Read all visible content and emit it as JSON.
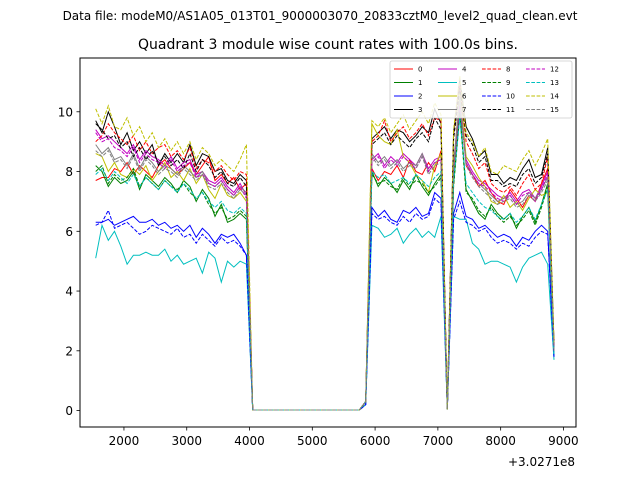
{
  "figure": {
    "suptitle": "Data file: modeM0/AS1A05_013T01_9000003070_20833cztM0_level2_quad_clean.evt"
  },
  "chart_data": {
    "type": "line",
    "title": "Quadrant 3 module wise count rates with 100.0s bins.",
    "xlabel": "",
    "ylabel": "",
    "x_offset_label": "+3.0271e8",
    "xlim": [
      1300,
      9200
    ],
    "ylim": [
      -0.55,
      11.8
    ],
    "xticks": [
      2000,
      3000,
      4000,
      5000,
      6000,
      7000,
      8000,
      9000
    ],
    "xtick_labels": [
      "2000",
      "3000",
      "4000",
      "5000",
      "6000",
      "7000",
      "8000",
      "9000"
    ],
    "yticks": [
      0,
      2,
      4,
      6,
      8,
      10
    ],
    "ytick_labels": [
      "0",
      "2",
      "4",
      "6",
      "8",
      "10"
    ],
    "grid": false,
    "legend_position": "top-right",
    "legend_columns": 4,
    "x": [
      1550,
      1650,
      1750,
      1850,
      1950,
      2050,
      2150,
      2250,
      2350,
      2450,
      2550,
      2650,
      2750,
      2850,
      2950,
      3050,
      3150,
      3250,
      3350,
      3450,
      3550,
      3650,
      3750,
      3850,
      3950,
      4050,
      5750,
      5850,
      5950,
      6050,
      6150,
      6250,
      6350,
      6450,
      6550,
      6650,
      6750,
      6850,
      6950,
      7050,
      7150,
      7250,
      7350,
      7450,
      7550,
      7650,
      7750,
      7850,
      7950,
      8050,
      8150,
      8250,
      8350,
      8450,
      8550,
      8650,
      8750,
      8850
    ],
    "series": [
      {
        "name": "0",
        "color": "#ff0000",
        "dash": "solid",
        "values": [
          7.7,
          7.8,
          7.8,
          8.1,
          8.0,
          8.3,
          7.9,
          8.2,
          8.0,
          7.8,
          8.2,
          8.4,
          8.1,
          7.9,
          8.1,
          8.3,
          7.9,
          8.2,
          8.5,
          7.7,
          7.9,
          7.6,
          7.8,
          7.4,
          7.6,
          0.02,
          0.02,
          0.3,
          8.1,
          7.7,
          8.0,
          7.9,
          8.2,
          7.8,
          8.4,
          8.0,
          7.9,
          8.3,
          8.0,
          8.7,
          0.05,
          8.0,
          10.8,
          8.2,
          7.9,
          7.5,
          7.7,
          7.3,
          7.0,
          6.9,
          7.4,
          7.1,
          6.8,
          7.2,
          7.0,
          7.6,
          8.1,
          2.1
        ]
      },
      {
        "name": "1",
        "color": "#008000",
        "dash": "solid",
        "values": [
          8.2,
          8.0,
          7.5,
          7.8,
          7.6,
          7.7,
          8.0,
          7.4,
          7.9,
          7.7,
          7.5,
          7.8,
          7.6,
          7.3,
          7.7,
          7.5,
          7.0,
          7.4,
          7.1,
          6.5,
          6.9,
          6.3,
          6.4,
          6.6,
          6.4,
          0.02,
          0.02,
          0.3,
          8.0,
          7.5,
          7.8,
          7.6,
          7.3,
          7.7,
          7.4,
          7.9,
          7.5,
          7.2,
          7.6,
          7.9,
          0.05,
          7.6,
          10.1,
          7.4,
          7.0,
          6.6,
          6.4,
          6.9,
          6.6,
          6.4,
          6.6,
          6.1,
          6.5,
          6.8,
          6.3,
          6.9,
          7.6,
          1.9
        ]
      },
      {
        "name": "2",
        "color": "#0000ff",
        "dash": "solid",
        "values": [
          6.3,
          6.3,
          6.4,
          6.2,
          6.3,
          6.4,
          6.5,
          6.3,
          6.3,
          6.4,
          6.2,
          6.3,
          6.1,
          6.2,
          6.0,
          6.2,
          5.8,
          6.1,
          5.9,
          5.6,
          5.9,
          5.8,
          5.9,
          5.6,
          5.2,
          0.02,
          0.02,
          0.2,
          6.8,
          6.5,
          6.7,
          6.4,
          6.3,
          6.7,
          6.6,
          6.8,
          6.5,
          6.6,
          7.3,
          7.1,
          0.05,
          6.6,
          7.3,
          6.5,
          6.4,
          6.1,
          6.2,
          6.0,
          5.8,
          5.9,
          5.8,
          5.5,
          5.8,
          5.7,
          6.0,
          6.2,
          6.0,
          1.8
        ]
      },
      {
        "name": "3",
        "color": "#000000",
        "dash": "solid",
        "values": [
          9.7,
          9.3,
          10.0,
          9.5,
          8.9,
          9.3,
          8.7,
          9.0,
          8.6,
          8.9,
          8.2,
          8.6,
          8.3,
          8.6,
          8.3,
          8.9,
          8.2,
          8.6,
          8.5,
          8.0,
          8.1,
          7.7,
          7.6,
          7.9,
          7.7,
          0.02,
          0.02,
          0.3,
          9.1,
          9.3,
          9.5,
          9.1,
          9.4,
          9.3,
          9.0,
          9.2,
          9.5,
          9.3,
          10.1,
          9.6,
          0.05,
          9.3,
          11.1,
          9.5,
          9.1,
          8.5,
          8.7,
          7.9,
          7.9,
          7.6,
          7.8,
          7.7,
          8.1,
          8.4,
          7.8,
          7.9,
          8.8,
          2.2
        ]
      },
      {
        "name": "4",
        "color": "#c000c0",
        "dash": "solid",
        "values": [
          9.4,
          9.1,
          9.2,
          9.0,
          8.8,
          8.6,
          8.9,
          8.4,
          8.7,
          8.5,
          8.4,
          8.2,
          8.5,
          8.1,
          8.3,
          8.4,
          7.9,
          8.0,
          7.7,
          7.6,
          7.8,
          7.5,
          7.3,
          7.6,
          7.2,
          0.02,
          0.02,
          0.3,
          8.4,
          8.6,
          8.2,
          8.5,
          8.3,
          8.6,
          8.4,
          8.2,
          8.6,
          8.1,
          8.4,
          8.5,
          0.05,
          8.2,
          10.3,
          8.4,
          8.0,
          7.7,
          7.6,
          7.4,
          7.2,
          7.1,
          7.3,
          7.0,
          7.3,
          7.4,
          7.1,
          7.5,
          8.0,
          2.0
        ]
      },
      {
        "name": "5",
        "color": "#00bfbf",
        "dash": "solid",
        "values": [
          5.1,
          6.2,
          5.7,
          6.0,
          5.5,
          4.9,
          5.2,
          5.2,
          5.3,
          5.2,
          5.2,
          5.4,
          5.0,
          5.2,
          4.9,
          5.0,
          5.1,
          4.6,
          5.3,
          5.1,
          4.3,
          5.0,
          4.8,
          5.0,
          4.9,
          0.02,
          0.02,
          0.2,
          6.2,
          6.1,
          5.8,
          5.9,
          6.1,
          5.6,
          5.9,
          6.1,
          5.8,
          6.0,
          5.8,
          6.5,
          0.05,
          6.5,
          6.4,
          6.4,
          5.6,
          5.4,
          4.9,
          5.0,
          5.0,
          4.9,
          4.8,
          4.3,
          4.8,
          5.1,
          5.2,
          5.3,
          4.9,
          1.7
        ]
      },
      {
        "name": "6",
        "color": "#bfbf00",
        "dash": "solid",
        "values": [
          8.6,
          8.5,
          8.0,
          8.3,
          7.9,
          7.8,
          8.1,
          7.9,
          8.2,
          7.7,
          8.0,
          8.3,
          7.8,
          8.0,
          7.7,
          8.1,
          7.6,
          7.9,
          7.4,
          7.1,
          7.6,
          7.2,
          7.1,
          7.3,
          7.0,
          0.02,
          0.02,
          0.3,
          9.6,
          9.2,
          9.0,
          8.9,
          9.4,
          8.5,
          8.3,
          7.9,
          7.7,
          7.3,
          8.2,
          8.6,
          0.05,
          8.1,
          10.7,
          8.5,
          8.2,
          7.8,
          7.5,
          7.0,
          6.9,
          7.2,
          6.8,
          7.0,
          6.7,
          7.1,
          7.4,
          7.2,
          7.3,
          2.0
        ]
      },
      {
        "name": "7",
        "color": "#808080",
        "dash": "solid",
        "values": [
          8.9,
          8.6,
          8.8,
          8.4,
          8.5,
          8.2,
          8.6,
          8.1,
          8.5,
          8.3,
          8.0,
          8.2,
          8.1,
          7.9,
          8.2,
          8.0,
          7.8,
          8.0,
          7.6,
          7.5,
          7.7,
          7.4,
          7.2,
          7.5,
          7.3,
          0.02,
          0.02,
          0.3,
          8.6,
          8.3,
          8.5,
          8.2,
          8.4,
          8.1,
          8.3,
          8.2,
          8.6,
          8.0,
          8.3,
          8.4,
          0.05,
          8.3,
          10.5,
          8.3,
          7.9,
          7.6,
          7.4,
          7.2,
          7.0,
          7.1,
          7.2,
          6.9,
          7.0,
          7.3,
          7.1,
          7.4,
          7.8,
          2.0
        ]
      },
      {
        "name": "8",
        "color": "#ff0000",
        "dash": "dashed",
        "values": [
          9.0,
          9.2,
          9.6,
          9.3,
          9.1,
          8.9,
          9.2,
          8.7,
          9.0,
          8.6,
          8.8,
          8.9,
          8.5,
          8.7,
          8.4,
          8.8,
          8.1,
          8.4,
          8.3,
          8.0,
          8.2,
          7.9,
          7.7,
          8.0,
          7.9,
          0.02,
          0.02,
          0.3,
          9.0,
          9.2,
          9.7,
          9.0,
          9.3,
          9.5,
          9.1,
          9.3,
          9.6,
          9.2,
          9.8,
          9.7,
          0.05,
          9.1,
          10.9,
          9.0,
          8.6,
          8.1,
          8.3,
          7.6,
          7.4,
          7.3,
          7.5,
          7.2,
          7.6,
          7.9,
          7.4,
          7.6,
          8.5,
          2.2
        ]
      },
      {
        "name": "9",
        "color": "#008000",
        "dash": "dashed",
        "values": [
          8.0,
          8.2,
          7.6,
          7.9,
          7.7,
          7.8,
          8.1,
          7.5,
          7.8,
          7.6,
          7.4,
          7.7,
          7.5,
          7.4,
          7.6,
          7.3,
          7.1,
          7.3,
          6.9,
          6.6,
          6.8,
          6.4,
          6.5,
          6.7,
          6.5,
          0.02,
          0.02,
          0.3,
          7.9,
          7.6,
          7.7,
          7.5,
          7.4,
          7.8,
          7.5,
          7.7,
          7.6,
          7.3,
          7.5,
          7.8,
          0.05,
          7.5,
          9.9,
          7.3,
          7.1,
          6.7,
          6.5,
          6.8,
          6.5,
          6.3,
          6.5,
          6.2,
          6.4,
          6.7,
          6.2,
          6.8,
          7.5,
          1.9
        ]
      },
      {
        "name": "10",
        "color": "#0000ff",
        "dash": "dashed",
        "values": [
          6.2,
          6.3,
          6.7,
          6.1,
          6.2,
          6.3,
          6.1,
          5.9,
          6.0,
          6.2,
          6.1,
          6.0,
          5.9,
          6.1,
          5.8,
          5.9,
          5.6,
          5.9,
          5.7,
          5.5,
          5.8,
          5.6,
          5.7,
          5.5,
          5.2,
          0.02,
          0.02,
          0.2,
          6.6,
          6.4,
          6.5,
          6.3,
          6.2,
          6.5,
          6.3,
          6.6,
          6.4,
          6.5,
          7.1,
          6.9,
          0.05,
          6.4,
          7.0,
          6.3,
          6.2,
          6.0,
          6.1,
          5.8,
          5.6,
          5.7,
          5.6,
          5.4,
          5.6,
          5.5,
          5.8,
          6.0,
          5.9,
          1.8
        ]
      },
      {
        "name": "11",
        "color": "#000000",
        "dash": "dashed",
        "values": [
          9.6,
          9.4,
          9.1,
          9.2,
          8.8,
          9.0,
          8.5,
          8.8,
          8.4,
          8.7,
          8.3,
          8.5,
          8.2,
          8.4,
          8.1,
          8.6,
          8.0,
          8.4,
          8.2,
          7.8,
          8.0,
          7.6,
          7.5,
          7.8,
          7.5,
          0.02,
          0.02,
          0.3,
          8.9,
          9.1,
          9.3,
          8.9,
          9.2,
          9.0,
          8.8,
          9.1,
          9.3,
          9.0,
          9.8,
          9.4,
          0.05,
          9.1,
          10.8,
          9.2,
          8.9,
          8.3,
          8.5,
          7.7,
          7.7,
          7.5,
          7.6,
          7.5,
          7.9,
          8.1,
          7.6,
          7.8,
          8.6,
          2.1
        ]
      },
      {
        "name": "12",
        "color": "#c000c0",
        "dash": "dashed",
        "values": [
          9.3,
          9.0,
          9.1,
          8.8,
          8.7,
          8.5,
          8.8,
          8.3,
          8.6,
          8.4,
          8.3,
          8.1,
          8.4,
          8.0,
          8.2,
          8.3,
          7.8,
          7.9,
          7.6,
          7.5,
          7.7,
          7.4,
          7.2,
          7.5,
          7.1,
          0.02,
          0.02,
          0.3,
          8.3,
          8.5,
          8.1,
          8.4,
          8.2,
          8.5,
          8.3,
          8.1,
          8.5,
          8.0,
          8.3,
          8.4,
          0.05,
          8.1,
          10.2,
          8.3,
          7.9,
          7.6,
          7.5,
          7.3,
          7.1,
          7.0,
          7.2,
          6.9,
          7.2,
          7.3,
          7.0,
          7.4,
          7.9,
          2.0
        ]
      },
      {
        "name": "13",
        "color": "#00bfbf",
        "dash": "dashed",
        "values": [
          7.9,
          8.1,
          7.7,
          8.0,
          7.8,
          7.6,
          7.9,
          7.5,
          7.8,
          7.6,
          7.4,
          7.7,
          7.5,
          7.3,
          7.6,
          7.4,
          7.1,
          7.3,
          7.0,
          6.8,
          7.0,
          6.7,
          6.6,
          6.8,
          6.6,
          0.02,
          0.02,
          0.3,
          8.0,
          7.8,
          7.9,
          7.6,
          7.7,
          7.8,
          7.6,
          7.9,
          7.7,
          7.5,
          7.8,
          8.0,
          0.05,
          7.7,
          9.8,
          7.6,
          7.3,
          7.0,
          6.8,
          6.7,
          6.5,
          6.4,
          6.6,
          6.3,
          6.5,
          6.8,
          6.4,
          6.9,
          7.4,
          1.9
        ]
      },
      {
        "name": "14",
        "color": "#bfbf00",
        "dash": "dashed",
        "values": [
          10.1,
          9.6,
          10.2,
          9.5,
          9.4,
          9.8,
          9.2,
          9.5,
          9.0,
          9.3,
          8.8,
          9.1,
          8.7,
          9.0,
          8.6,
          9.0,
          8.4,
          8.8,
          8.6,
          8.2,
          8.4,
          8.2,
          8.0,
          8.4,
          8.9,
          0.02,
          0.02,
          0.3,
          9.7,
          9.5,
          9.8,
          9.3,
          9.6,
          9.9,
          9.4,
          9.7,
          10.0,
          9.6,
          10.3,
          9.9,
          0.05,
          9.4,
          11.2,
          9.3,
          9.0,
          8.5,
          8.8,
          8.0,
          7.9,
          8.2,
          8.1,
          8.0,
          8.4,
          8.7,
          8.2,
          8.6,
          9.1,
          2.3
        ]
      },
      {
        "name": "15",
        "color": "#808080",
        "dash": "dashed",
        "values": [
          8.7,
          8.5,
          8.7,
          8.3,
          8.4,
          8.1,
          8.5,
          8.0,
          8.4,
          8.2,
          7.9,
          8.1,
          8.0,
          7.8,
          8.1,
          7.9,
          7.7,
          7.9,
          7.5,
          7.4,
          7.6,
          7.3,
          7.1,
          7.4,
          7.2,
          0.02,
          0.02,
          0.3,
          8.5,
          8.2,
          8.4,
          8.1,
          8.3,
          8.0,
          8.2,
          8.1,
          8.5,
          7.9,
          8.2,
          8.3,
          0.05,
          8.2,
          10.4,
          8.2,
          7.8,
          7.5,
          7.3,
          7.1,
          6.9,
          7.0,
          7.1,
          6.8,
          6.9,
          7.2,
          7.0,
          7.3,
          7.7,
          2.0
        ]
      }
    ]
  }
}
